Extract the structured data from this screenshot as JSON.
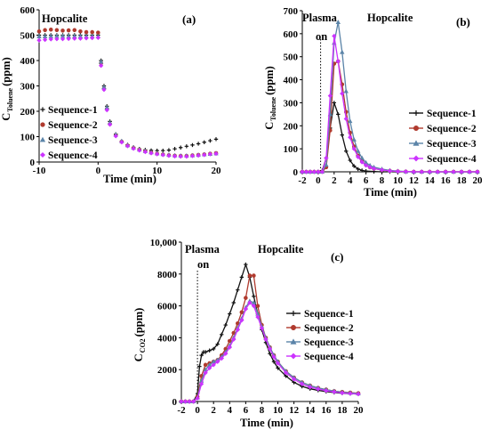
{
  "colors": {
    "Sequence-1": "#111111",
    "Sequence-2": "#b03a2e",
    "Sequence-3": "#5b84a8",
    "Sequence-4": "#cc33ff"
  },
  "chart_data": [
    {
      "id": "a",
      "type": "scatter",
      "panel_label": "(a)",
      "annotation": "Hopcalite",
      "xlabel": "Time (min)",
      "ylabel_main": "C",
      "ylabel_sub": "Toluene",
      "ylabel_unit": "(ppm)",
      "xlim": [
        -10,
        20
      ],
      "ylim": [
        0,
        600
      ],
      "xticks": [
        -10,
        0,
        10,
        20
      ],
      "yticks": [
        0,
        100,
        200,
        300,
        400,
        500,
        600
      ],
      "legend_position": "left",
      "markers_only": true,
      "series": [
        {
          "name": "Sequence-1",
          "marker": "plus",
          "x": [
            -10,
            -9,
            -8,
            -7,
            -6,
            -5,
            -4,
            -3,
            -2,
            -1,
            0,
            0.5,
            1,
            1.5,
            2,
            3,
            4,
            5,
            6,
            7,
            8,
            9,
            10,
            11,
            12,
            13,
            14,
            15,
            16,
            17,
            18,
            19,
            20
          ],
          "y": [
            500,
            500,
            500,
            500,
            500,
            500,
            500,
            500,
            500,
            500,
            500,
            400,
            300,
            220,
            160,
            110,
            82,
            68,
            58,
            52,
            48,
            46,
            45,
            45,
            47,
            52,
            57,
            62,
            67,
            72,
            78,
            84,
            90
          ]
        },
        {
          "name": "Sequence-2",
          "marker": "circle",
          "x": [
            -10,
            -9,
            -8,
            -7,
            -6,
            -5,
            -4,
            -3,
            -2,
            -1,
            0,
            0.5,
            1,
            1.5,
            2,
            3,
            4,
            5,
            6,
            7,
            8,
            9,
            10,
            11,
            12,
            13,
            14,
            15,
            16,
            17,
            18,
            19,
            20
          ],
          "y": [
            515,
            520,
            522,
            520,
            518,
            519,
            520,
            515,
            512,
            512,
            510,
            390,
            290,
            210,
            150,
            105,
            80,
            65,
            55,
            48,
            42,
            37,
            33,
            30,
            27,
            25,
            24,
            24,
            26,
            28,
            30,
            33,
            35
          ]
        },
        {
          "name": "Sequence-3",
          "marker": "triangle",
          "x": [
            -10,
            -9,
            -8,
            -7,
            -6,
            -5,
            -4,
            -3,
            -2,
            -1,
            0,
            0.5,
            1,
            1.5,
            2,
            3,
            4,
            5,
            6,
            7,
            8,
            9,
            10,
            11,
            12,
            13,
            14,
            15,
            16,
            17,
            18,
            19,
            20
          ],
          "y": [
            495,
            495,
            496,
            497,
            497,
            496,
            496,
            496,
            495,
            496,
            495,
            395,
            295,
            215,
            155,
            108,
            82,
            66,
            56,
            49,
            43,
            38,
            34,
            31,
            28,
            26,
            25,
            25,
            26,
            28,
            30,
            32,
            34
          ]
        },
        {
          "name": "Sequence-4",
          "marker": "diamond",
          "x": [
            -10,
            -9,
            -8,
            -7,
            -6,
            -5,
            -4,
            -3,
            -2,
            -1,
            0,
            0.5,
            1,
            1.5,
            2,
            3,
            4,
            5,
            6,
            7,
            8,
            9,
            10,
            11,
            12,
            13,
            14,
            15,
            16,
            17,
            18,
            19,
            20
          ],
          "y": [
            480,
            482,
            484,
            485,
            485,
            486,
            487,
            487,
            488,
            489,
            490,
            380,
            285,
            205,
            148,
            102,
            78,
            63,
            53,
            46,
            40,
            35,
            31,
            28,
            25,
            23,
            22,
            22,
            24,
            26,
            28,
            31,
            33
          ]
        }
      ]
    },
    {
      "id": "b",
      "type": "line",
      "panel_label": "(b)",
      "annotation": "Hopcalite",
      "plasma_label_1": "Plasma",
      "plasma_label_2": "on",
      "plasma_on_x": 0.3,
      "xlabel": "Time (min)",
      "ylabel_main": "C",
      "ylabel_sub": "Toluene",
      "ylabel_unit": "(ppm)",
      "xlim": [
        -2,
        20
      ],
      "ylim": [
        0,
        700
      ],
      "xticks": [
        -2,
        0,
        2,
        4,
        6,
        8,
        10,
        12,
        14,
        16,
        18,
        20
      ],
      "yticks": [
        0,
        100,
        200,
        300,
        400,
        500,
        600,
        700
      ],
      "legend_position": "right",
      "series": [
        {
          "name": "Sequence-1",
          "marker": "plus",
          "x": [
            -2,
            -1.5,
            -1,
            -0.5,
            0,
            0.5,
            1,
            1.5,
            2,
            2.5,
            3,
            3.5,
            4,
            4.5,
            5,
            5.5,
            6,
            7,
            8,
            9,
            10,
            11,
            12,
            13,
            14,
            15,
            16,
            17,
            18,
            19,
            20
          ],
          "y": [
            0,
            0,
            0,
            0,
            0,
            5,
            60,
            190,
            300,
            250,
            160,
            90,
            50,
            25,
            12,
            6,
            3,
            1,
            0,
            0,
            0,
            0,
            0,
            0,
            0,
            0,
            0,
            0,
            0,
            0,
            0
          ]
        },
        {
          "name": "Sequence-2",
          "marker": "circle",
          "x": [
            -2,
            -1.5,
            -1,
            -0.5,
            0,
            0.5,
            1,
            1.5,
            2,
            2.5,
            3,
            3.5,
            4,
            4.5,
            5,
            5.5,
            6,
            6.5,
            7,
            8,
            9,
            10,
            11,
            12,
            13,
            14,
            15,
            16,
            17,
            18,
            19,
            20
          ],
          "y": [
            0,
            0,
            0,
            0,
            0,
            0,
            20,
            180,
            470,
            480,
            380,
            260,
            170,
            110,
            70,
            45,
            30,
            20,
            14,
            8,
            4,
            2,
            1,
            0,
            0,
            0,
            0,
            0,
            0,
            0,
            0,
            0
          ]
        },
        {
          "name": "Sequence-3",
          "marker": "triangle",
          "x": [
            -2,
            -1.5,
            -1,
            -0.5,
            0,
            0.5,
            1,
            1.5,
            2,
            2.5,
            3,
            3.5,
            4,
            4.5,
            5,
            5.5,
            6,
            6.5,
            7,
            8,
            9,
            10,
            11,
            12,
            13,
            14,
            15,
            16,
            17,
            18,
            19,
            20
          ],
          "y": [
            0,
            0,
            0,
            0,
            0,
            0,
            30,
            250,
            560,
            650,
            520,
            350,
            220,
            140,
            90,
            60,
            40,
            28,
            20,
            12,
            6,
            3,
            1,
            0,
            0,
            0,
            0,
            0,
            0,
            0,
            0,
            0
          ]
        },
        {
          "name": "Sequence-4",
          "marker": "diamond",
          "x": [
            -2,
            -1.5,
            -1,
            -0.5,
            0,
            0.5,
            1,
            1.5,
            2,
            2.5,
            3,
            3.5,
            4,
            4.5,
            5,
            5.5,
            6,
            6.5,
            7,
            8,
            9,
            10,
            11,
            12,
            13,
            14,
            15,
            16,
            17,
            18,
            19,
            20
          ],
          "y": [
            0,
            0,
            0,
            0,
            0,
            0,
            60,
            330,
            590,
            480,
            340,
            230,
            150,
            100,
            65,
            42,
            28,
            20,
            14,
            8,
            4,
            2,
            1,
            0,
            0,
            0,
            0,
            0,
            0,
            0,
            0,
            0
          ]
        }
      ]
    },
    {
      "id": "c",
      "type": "line",
      "panel_label": "(c)",
      "annotation": "Hopcalite",
      "plasma_label_1": "Plasma",
      "plasma_label_2": "on",
      "plasma_on_x": 0,
      "xlabel": "Time (min)",
      "ylabel_main": "C",
      "ylabel_sub": "CO2",
      "ylabel_unit": "(ppm)",
      "xlim": [
        -2,
        20
      ],
      "ylim": [
        0,
        10000
      ],
      "xticks": [
        -2,
        0,
        2,
        4,
        6,
        8,
        10,
        12,
        14,
        16,
        18,
        20
      ],
      "yticks": [
        0,
        2000,
        4000,
        6000,
        8000,
        10000
      ],
      "ytick_labels": [
        "0",
        "2000",
        "4000",
        "6000",
        "8000",
        "10,000"
      ],
      "legend_position": "right",
      "series": [
        {
          "name": "Sequence-1",
          "marker": "plus",
          "x": [
            -2,
            -1.5,
            -1,
            -0.5,
            0,
            0.25,
            0.5,
            0.75,
            1,
            1.5,
            2,
            2.5,
            3,
            3.5,
            4,
            4.5,
            5,
            5.5,
            6,
            6.5,
            7,
            7.5,
            8,
            8.5,
            9,
            9.5,
            10,
            11,
            12,
            13,
            14,
            15,
            16,
            17,
            18,
            19,
            20
          ],
          "y": [
            0,
            0,
            0,
            0,
            500,
            2200,
            2900,
            3100,
            3100,
            3200,
            3300,
            3600,
            4200,
            4800,
            5500,
            6200,
            7000,
            7800,
            8600,
            7800,
            6600,
            5500,
            4500,
            3700,
            3000,
            2500,
            2100,
            1600,
            1200,
            950,
            800,
            700,
            620,
            560,
            520,
            490,
            470
          ]
        },
        {
          "name": "Sequence-2",
          "marker": "circle",
          "x": [
            -2,
            -1.5,
            -1,
            -0.5,
            0,
            0.5,
            1,
            1.5,
            2,
            2.5,
            3,
            3.5,
            4,
            4.5,
            5,
            5.5,
            6,
            6.5,
            7,
            7.5,
            8,
            8.5,
            9,
            9.5,
            10,
            11,
            12,
            13,
            14,
            15,
            16,
            17,
            18,
            19,
            20
          ],
          "y": [
            0,
            0,
            0,
            0,
            300,
            1600,
            2300,
            2400,
            2500,
            2600,
            2900,
            3300,
            3800,
            4300,
            4900,
            5600,
            6500,
            7900,
            7900,
            6000,
            4800,
            4000,
            3400,
            2900,
            2500,
            1900,
            1500,
            1200,
            1000,
            850,
            750,
            650,
            600,
            560,
            520
          ]
        },
        {
          "name": "Sequence-3",
          "marker": "triangle",
          "x": [
            -2,
            -1.5,
            -1,
            -0.5,
            0,
            0.5,
            1,
            1.5,
            2,
            2.5,
            3,
            3.5,
            4,
            4.5,
            5,
            5.5,
            6,
            6.5,
            7,
            7.5,
            8,
            8.5,
            9,
            9.5,
            10,
            11,
            12,
            13,
            14,
            15,
            16,
            17,
            18,
            19,
            20
          ],
          "y": [
            0,
            0,
            0,
            0,
            250,
            1300,
            2000,
            2300,
            2500,
            2600,
            2800,
            3100,
            3500,
            4000,
            4600,
            5200,
            5900,
            6300,
            6200,
            5500,
            4700,
            4000,
            3400,
            2900,
            2500,
            1900,
            1500,
            1200,
            1000,
            850,
            750,
            650,
            580,
            540,
            500
          ]
        },
        {
          "name": "Sequence-4",
          "marker": "diamond",
          "x": [
            -2,
            -1.5,
            -1,
            -0.5,
            0,
            0.5,
            1,
            1.5,
            2,
            2.5,
            3,
            3.5,
            4,
            4.5,
            5,
            5.5,
            6,
            6.5,
            7,
            7.5,
            8,
            8.5,
            9,
            9.5,
            10,
            11,
            12,
            13,
            14,
            15,
            16,
            17,
            18,
            19,
            20
          ],
          "y": [
            0,
            0,
            0,
            0,
            200,
            1100,
            1800,
            2100,
            2300,
            2500,
            2700,
            3000,
            3400,
            3900,
            4500,
            5100,
            5800,
            6200,
            6000,
            5300,
            4600,
            3900,
            3300,
            2800,
            2400,
            1800,
            1400,
            1100,
            900,
            780,
            680,
            600,
            540,
            500,
            470
          ]
        }
      ]
    }
  ]
}
